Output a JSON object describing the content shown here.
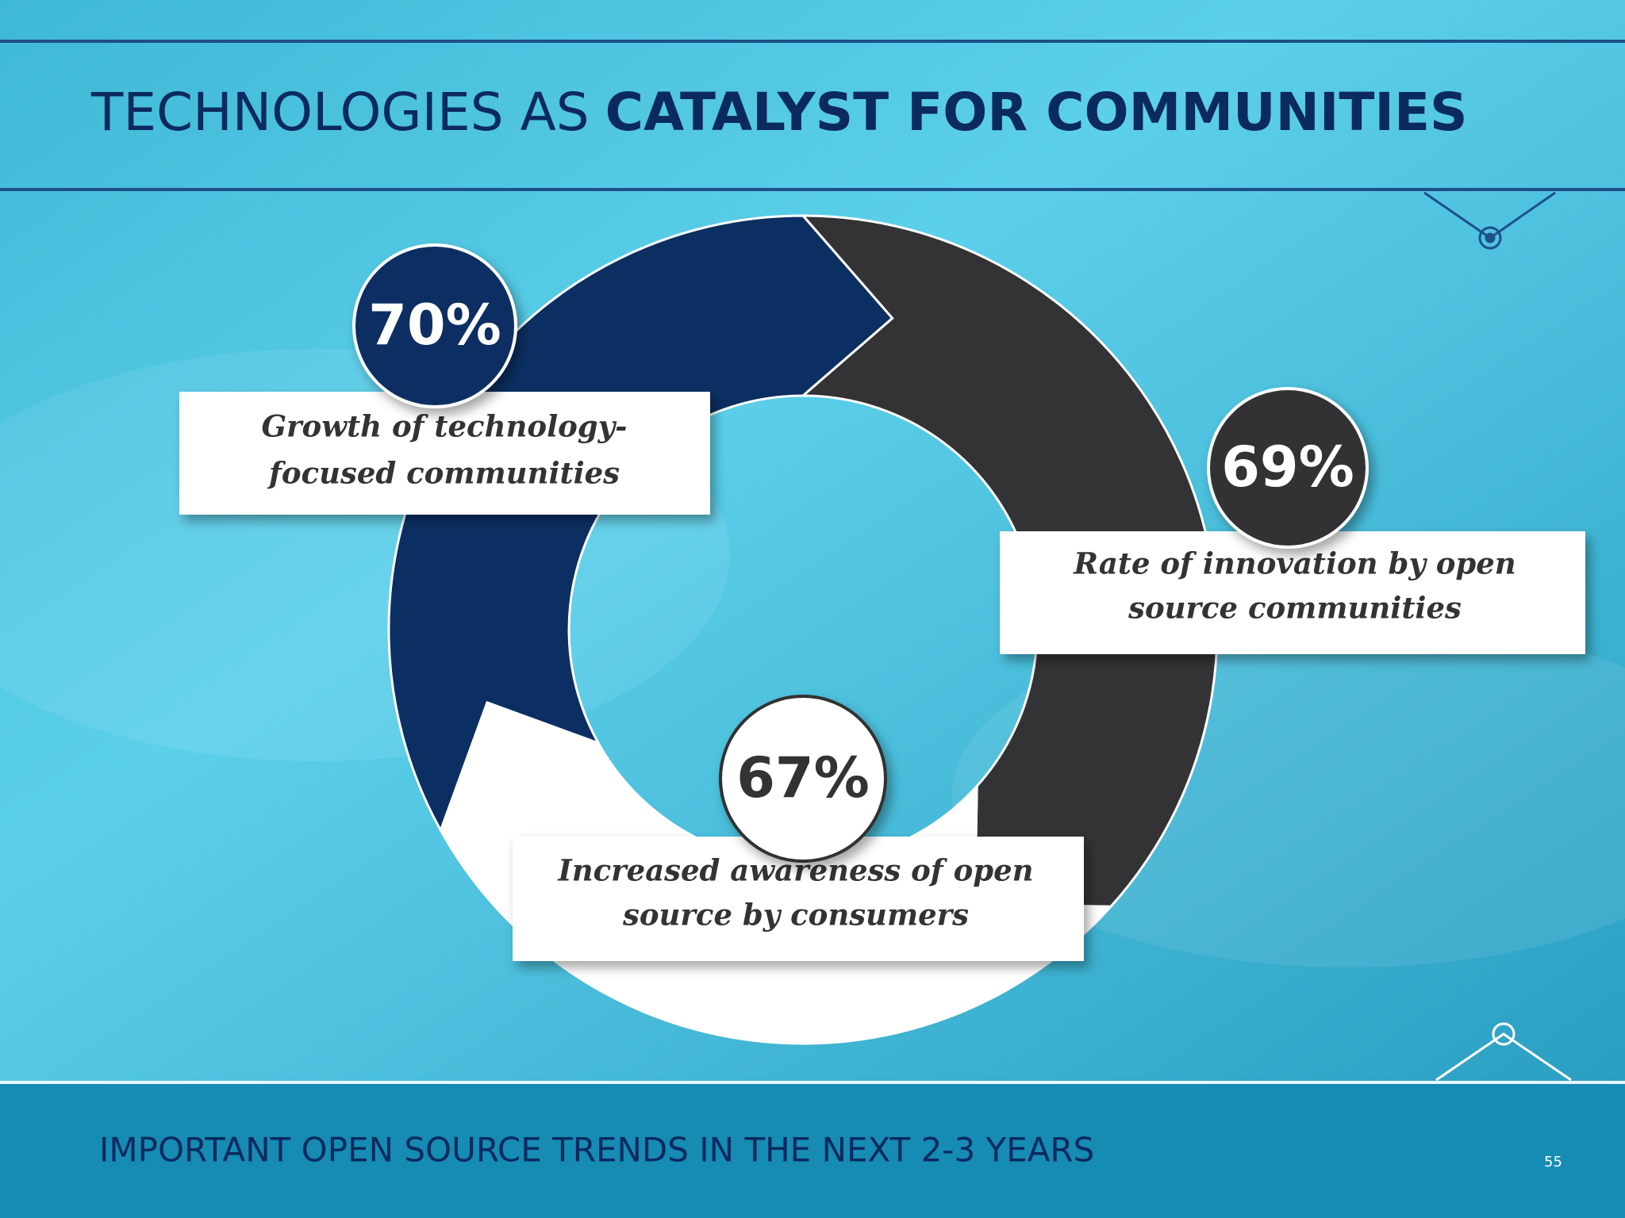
{
  "header": {
    "title_regular": "TECHNOLOGIES AS",
    "title_bold": "CATALYST FOR COMMUNITIES"
  },
  "items": [
    {
      "value": "70%",
      "label_lines": [
        "Growth of technology-",
        "focused communities"
      ]
    },
    {
      "value": "69%",
      "label_lines": [
        "Rate of innovation by open",
        "source communities"
      ]
    },
    {
      "value": "67%",
      "label_lines": [
        "Increased awareness of open",
        "source by consumers"
      ]
    }
  ],
  "footer": {
    "subtitle": "IMPORTANT OPEN SOURCE TRENDS IN THE NEXT 2-3 YEARS",
    "page_number": 55
  }
}
